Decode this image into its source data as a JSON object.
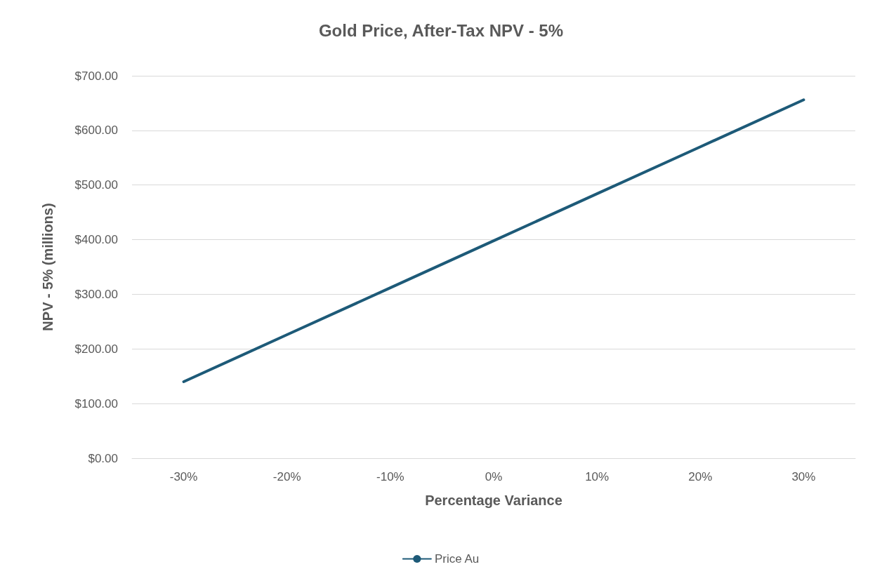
{
  "chart_data": {
    "type": "line",
    "title": "Gold Price, After-Tax NPV - 5%",
    "xlabel": "Percentage Variance",
    "ylabel": "NPV - 5% (millions)",
    "categories": [
      "-30%",
      "-20%",
      "-10%",
      "0%",
      "10%",
      "20%",
      "30%"
    ],
    "series": [
      {
        "name": "Price Au",
        "color": "#1d5a78",
        "values": [
          140,
          226,
          312,
          398,
          484,
          570,
          656
        ]
      }
    ],
    "ylim": [
      0,
      700
    ],
    "yticks": [
      {
        "value": 0,
        "label": "$0.00"
      },
      {
        "value": 100,
        "label": "$100.00"
      },
      {
        "value": 200,
        "label": "$200.00"
      },
      {
        "value": 300,
        "label": "$300.00"
      },
      {
        "value": 400,
        "label": "$400.00"
      },
      {
        "value": 500,
        "label": "$500.00"
      },
      {
        "value": 600,
        "label": "$600.00"
      },
      {
        "value": 700,
        "label": "$700.00"
      }
    ],
    "grid": "y",
    "legend": "bottom",
    "marker": "none",
    "line_style": "solid"
  }
}
